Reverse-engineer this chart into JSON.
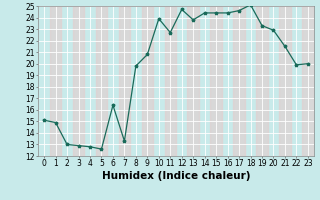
{
  "x": [
    0,
    1,
    2,
    3,
    4,
    5,
    6,
    7,
    8,
    9,
    10,
    11,
    12,
    13,
    14,
    15,
    16,
    17,
    18,
    19,
    20,
    21,
    22,
    23
  ],
  "y": [
    15.1,
    14.9,
    13.0,
    12.9,
    12.8,
    12.6,
    16.4,
    13.3,
    19.8,
    20.8,
    23.9,
    22.7,
    24.7,
    23.8,
    24.4,
    24.4,
    24.4,
    24.6,
    25.1,
    23.3,
    22.9,
    21.5,
    19.9,
    20.0
  ],
  "xlabel": "Humidex (Indice chaleur)",
  "ylim": [
    12,
    25
  ],
  "xlim": [
    -0.5,
    23.5
  ],
  "yticks": [
    12,
    13,
    14,
    15,
    16,
    17,
    18,
    19,
    20,
    21,
    22,
    23,
    24,
    25
  ],
  "xticks": [
    0,
    1,
    2,
    3,
    4,
    5,
    6,
    7,
    8,
    9,
    10,
    11,
    12,
    13,
    14,
    15,
    16,
    17,
    18,
    19,
    20,
    21,
    22,
    23
  ],
  "line_color": "#1a6b5a",
  "marker": "*",
  "bg_color": "#c8eaea",
  "grid_major_color": "#ffffff",
  "grid_minor_color": "#e8c8c8",
  "xlabel_fontsize": 7.5,
  "tick_fontsize": 5.5
}
